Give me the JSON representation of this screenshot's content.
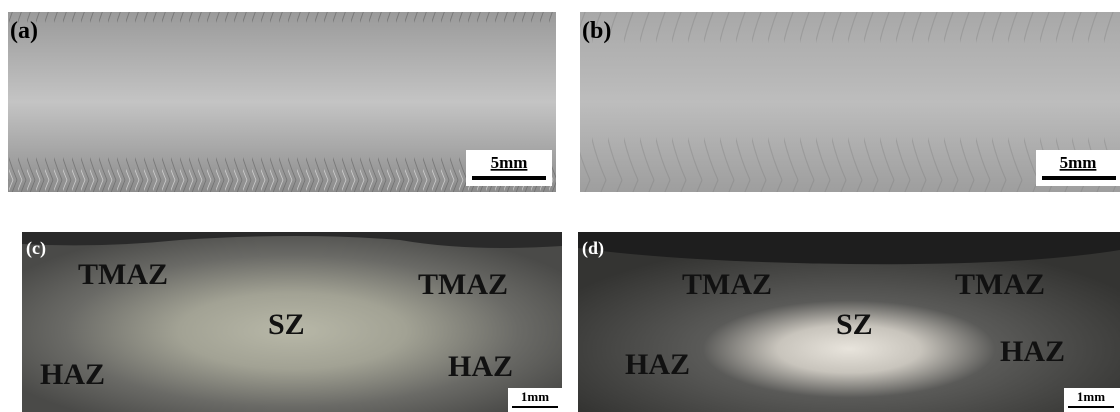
{
  "panels": [
    {
      "label": "(a)",
      "scale_bar": "5mm"
    },
    {
      "label": "(b)",
      "scale_bar": "5mm"
    },
    {
      "label": "(c)",
      "scale_bar": "1mm",
      "zones": [
        "TMAZ",
        "SZ",
        "TMAZ",
        "HAZ",
        "HAZ"
      ]
    },
    {
      "label": "(d)",
      "scale_bar": "1mm",
      "zones": [
        "TMAZ",
        "SZ",
        "TMAZ",
        "HAZ",
        "HAZ"
      ]
    }
  ]
}
